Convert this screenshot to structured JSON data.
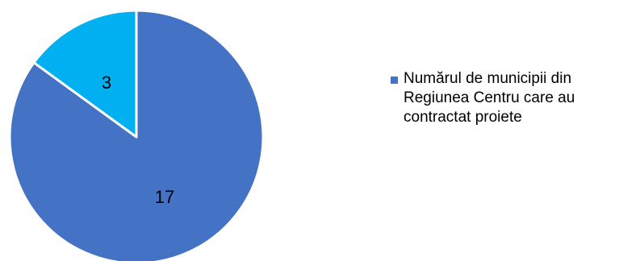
{
  "chart_data": {
    "type": "pie",
    "categories": [
      "",
      ""
    ],
    "values": [
      17,
      3
    ],
    "data_labels": [
      "17",
      "3"
    ],
    "colors": [
      "#4472c4",
      "#00b0f0"
    ],
    "title": "",
    "legend": {
      "placement": "right",
      "entries": [
        "Numărul de municipii din Regiunea Centru care au contractat proiete"
      ],
      "color": "#4472c4"
    }
  }
}
